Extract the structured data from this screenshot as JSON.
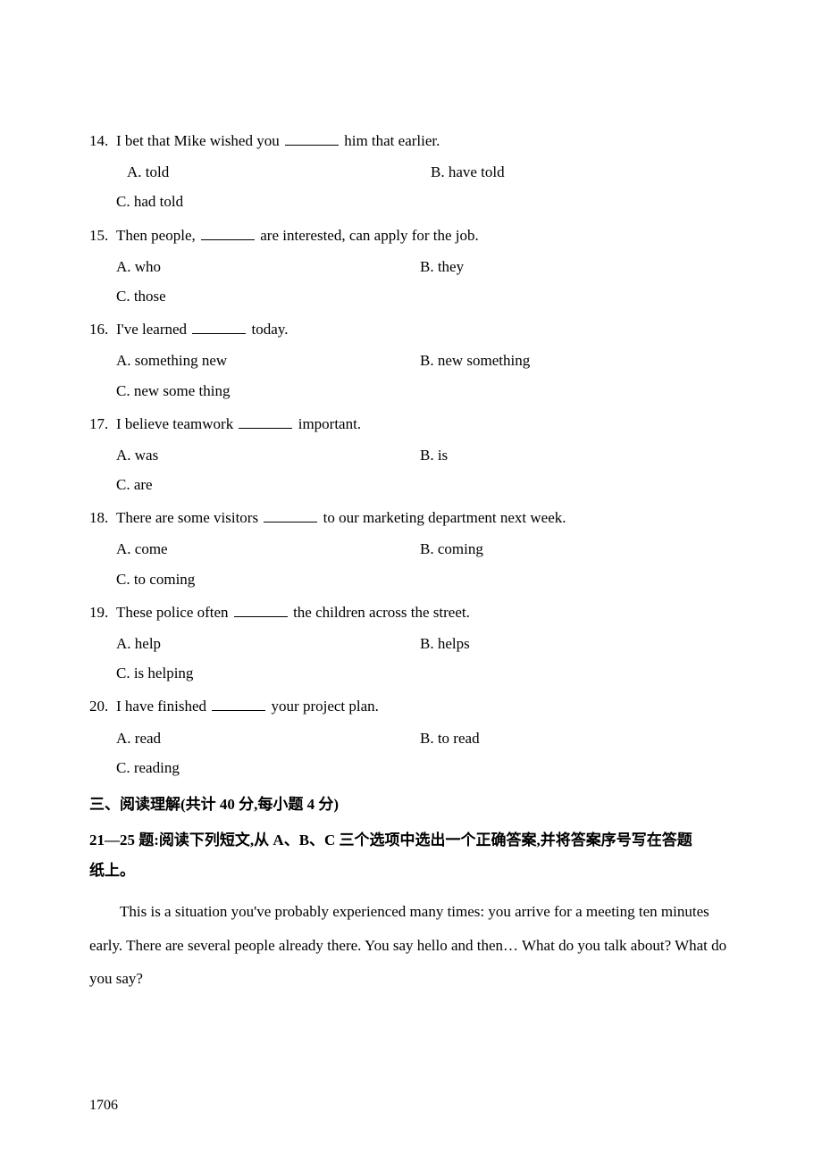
{
  "questions": [
    {
      "num": "14.",
      "text_before": "I bet that Mike wished you ",
      "text_after": " him that earlier.",
      "a": "A.  told",
      "b": "B.  have told",
      "c": "C.  had told",
      "a_indent": true
    },
    {
      "num": "15.",
      "text_before": "Then people, ",
      "text_after": " are interested, can apply for the job.",
      "a": "A.  who",
      "b": "B.  they",
      "c": "C.  those"
    },
    {
      "num": "16.",
      "text_before": "I've learned ",
      "text_after": " today.",
      "a": "A.  something new",
      "b": "B.  new something",
      "c": "C.  new some thing"
    },
    {
      "num": "17.",
      "text_before": "I believe teamwork ",
      "text_after": " important.",
      "a": "A.  was",
      "b": "B.  is",
      "c": "C.  are"
    },
    {
      "num": "18.",
      "text_before": "There are some visitors ",
      "text_after": " to our marketing department next week.",
      "a": "A.  come",
      "b": "B.  coming",
      "c": "C.  to coming"
    },
    {
      "num": "19.",
      "text_before": "These police often ",
      "text_after": " the children across the street.",
      "a": "A.  help",
      "b": "B.  helps",
      "c": "C.  is helping"
    },
    {
      "num": "20.",
      "text_before": "I have finished ",
      "text_after": " your project plan.",
      "a": "A.  read",
      "b": "B.  to read",
      "c": "C.  reading"
    }
  ],
  "section_heading": "三、阅读理解(共计 40 分,每小题 4 分)",
  "reading_instruction_line1": "21—25 题:阅读下列短文,从 A、B、C 三个选项中选出一个正确答案,并将答案序号写在答题",
  "reading_instruction_line2": "纸上。",
  "passage": "This is a situation you've probably experienced many times: you arrive for a meeting ten minutes early. There are several people already there. You say hello and then… What do you talk about? What do you say?",
  "page_number": "1706"
}
